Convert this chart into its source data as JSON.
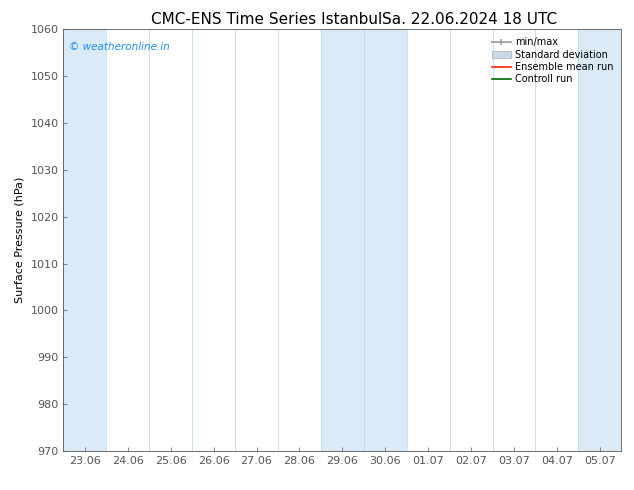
{
  "title": "CMC-ENS Time Series Istanbul",
  "title2": "Sa. 22.06.2024 18 UTC",
  "ylabel": "Surface Pressure (hPa)",
  "ylim": [
    970,
    1060
  ],
  "yticks": [
    970,
    980,
    990,
    1000,
    1010,
    1020,
    1030,
    1040,
    1050,
    1060
  ],
  "xlabels": [
    "23.06",
    "24.06",
    "25.06",
    "26.06",
    "27.06",
    "28.06",
    "29.06",
    "30.06",
    "01.07",
    "02.07",
    "03.07",
    "04.07",
    "05.07"
  ],
  "shaded_band_indices": [
    0,
    6,
    7,
    12
  ],
  "band_color": "#daeaf6",
  "vline_color": "#b8d4ea",
  "watermark": "© weatheronline.in",
  "watermark_color": "#1e90ff",
  "legend_labels": [
    "min/max",
    "Standard deviation",
    "Ensemble mean run",
    "Controll run"
  ],
  "legend_colors_line": [
    "#999999",
    "#c0d8ec",
    "#ff0000",
    "#008000"
  ],
  "background_color": "#ffffff",
  "axes_color": "#000000",
  "tick_color": "#555555",
  "font_size": 8,
  "title_font_size": 11
}
